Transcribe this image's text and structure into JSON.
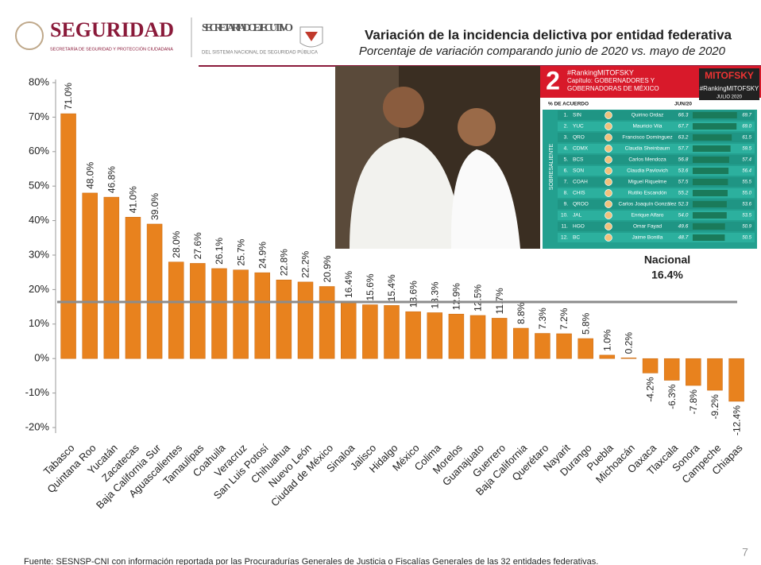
{
  "header": {
    "logo_main": "SEGURIDAD",
    "logo_sub": "SECRETARÍA DE SEGURIDAD Y PROTECCIÓN CIUDADANA",
    "agency": "SECRETARIADO EJECUTIVO",
    "agency_sub": "DEL SISTEMA NACIONAL DE SEGURIDAD PÚBLICA"
  },
  "chart_data": {
    "type": "bar",
    "title": "Variación de la incidencia delictiva por entidad federativa",
    "subtitle": "Porcentaje de variación comparando junio de 2020 vs. mayo de 2020",
    "categories": [
      "Tabasco",
      "Quintana Roo",
      "Yucatán",
      "Zacatecas",
      "Baja California Sur",
      "Aguascalientes",
      "Tamaulipas",
      "Coahuila",
      "Veracruz",
      "San Luis Potosí",
      "Chihuahua",
      "Nuevo León",
      "Ciudad de México",
      "Sinaloa",
      "Jalisco",
      "Hidalgo",
      "México",
      "Colima",
      "Morelos",
      "Guanajuato",
      "Guerrero",
      "Baja California",
      "Querétaro",
      "Nayarit",
      "Durango",
      "Puebla",
      "Michoacán",
      "Oaxaca",
      "Tlaxcala",
      "Sonora",
      "Campeche",
      "Chiapas"
    ],
    "values": [
      71.0,
      48.0,
      46.8,
      41.0,
      39.0,
      28.0,
      27.6,
      26.1,
      25.7,
      24.9,
      22.8,
      22.2,
      20.9,
      16.4,
      15.6,
      15.4,
      13.6,
      13.3,
      12.9,
      12.5,
      11.7,
      8.8,
      7.3,
      7.2,
      5.8,
      1.0,
      0.2,
      -4.2,
      -6.3,
      -7.8,
      -9.2,
      -12.4
    ],
    "value_labels": [
      "71.0%",
      "48.0%",
      "46.8%",
      "41.0%",
      "39.0%",
      "28.0%",
      "27.6%",
      "26.1%",
      "25.7%",
      "24.9%",
      "22.8%",
      "22.2%",
      "20.9%",
      "16.4%",
      "15.6%",
      "15.4%",
      "13.6%",
      "13.3%",
      "12.9%",
      "12.5%",
      "11.7%",
      "8.8%",
      "7.3%",
      "7.2%",
      "5.8%",
      "1.0%",
      "0.2%",
      "-4.2%",
      "-6.3%",
      "-7.8%",
      "-9.2%",
      "-12.4%"
    ],
    "color": "#e8821e",
    "ylim": [
      -20,
      80
    ],
    "yticks": [
      {
        "value": -20,
        "label": "-20%"
      },
      {
        "value": -10,
        "label": "-10%"
      },
      {
        "value": 0,
        "label": "0%"
      },
      {
        "value": 10,
        "label": "10%"
      },
      {
        "value": 20,
        "label": "20%"
      },
      {
        "value": 30,
        "label": "30%"
      },
      {
        "value": 40,
        "label": "40%"
      },
      {
        "value": 50,
        "label": "50%"
      },
      {
        "value": 60,
        "label": "60%"
      },
      {
        "value": 70,
        "label": "70%"
      },
      {
        "value": 80,
        "label": "80%"
      }
    ],
    "reference": {
      "label": "Nacional",
      "value": 16.4,
      "value_label": "16.4%",
      "color": "#8c8c8c"
    }
  },
  "inset": {
    "number": "2",
    "hashtag": "#RankingMITOFSKY",
    "chapter": "Capítulo: GOBERNADORES Y GOBERNADORAS DE MÉXICO",
    "brand": "MITOFSKY",
    "brand_tag": "#RankingMITOFSKY",
    "date": "JULIO 2020",
    "col_agree": "% DE ACUERDO",
    "col_month": "JUN/20",
    "group": "SOBRESALIENTE",
    "rows": [
      [
        "1.",
        "SIN",
        "Quirino Ordaz",
        "66.3",
        "69.7"
      ],
      [
        "2.",
        "YUC",
        "Mauricio Vila",
        "67.7",
        "69.0"
      ],
      [
        "3.",
        "QRO",
        "Francisco Domínguez",
        "63.2",
        "61.5"
      ],
      [
        "4.",
        "CDMX",
        "Claudia Sheinbaum",
        "57.7",
        "59.5"
      ],
      [
        "5.",
        "BCS",
        "Carlos Mendoza",
        "56.8",
        "57.4"
      ],
      [
        "6.",
        "SON",
        "Claudia Pavlovich",
        "53.6",
        "56.4"
      ],
      [
        "7.",
        "COAH",
        "Miguel Riquelme",
        "57.5",
        "55.5"
      ],
      [
        "8.",
        "CHIS",
        "Rutilio Escandón",
        "55.2",
        "55.0"
      ],
      [
        "9.",
        "QROO",
        "Carlos Joaquín González",
        "52.3",
        "53.6"
      ],
      [
        "10.",
        "JAL",
        "Enrique Alfaro",
        "54.0",
        "53.5"
      ],
      [
        "11.",
        "HGO",
        "Omar Fayad",
        "49.6",
        "50.9"
      ],
      [
        "12.",
        "BC",
        "Jaime Bonilla",
        "48.7",
        "50.5"
      ]
    ]
  },
  "footer": {
    "source": "Fuente: SESNSP-CNI con información reportada por las Procuradurías Generales de Justicia o Fiscalías Generales de las 32 entidades federativas.",
    "page": "7"
  }
}
